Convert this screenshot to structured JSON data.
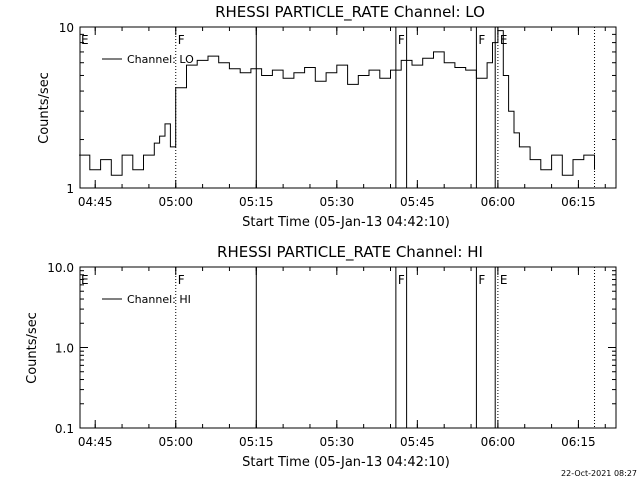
{
  "chart_data": [
    {
      "type": "line",
      "title": "RHESSI PARTICLE_RATE Channel: LO",
      "xlabel": "Start Time (05-Jan-13 04:42:10)",
      "ylabel": "Counts/sec",
      "yscale": "log",
      "ylim": [
        1,
        10
      ],
      "y_tick_labels": [
        "1",
        "10"
      ],
      "xlim": [
        "04:42:10",
        "06:22:00"
      ],
      "x_tick_labels": [
        "04:45",
        "05:00",
        "05:15",
        "05:30",
        "05:45",
        "06:00",
        "06:15"
      ],
      "series": [
        {
          "name": "Channel: LO",
          "x": [
            "04:42",
            "04:44",
            "04:46",
            "04:48",
            "04:50",
            "04:52",
            "04:54",
            "04:56",
            "04:57",
            "04:58",
            "04:59",
            "05:00",
            "05:02",
            "05:04",
            "05:06",
            "05:08",
            "05:10",
            "05:12",
            "05:14",
            "05:16",
            "05:18",
            "05:20",
            "05:22",
            "05:24",
            "05:26",
            "05:28",
            "05:30",
            "05:32",
            "05:34",
            "05:36",
            "05:38",
            "05:40",
            "05:42",
            "05:44",
            "05:46",
            "05:48",
            "05:50",
            "05:52",
            "05:54",
            "05:56",
            "05:58",
            "05:59",
            "06:00",
            "06:01",
            "06:02",
            "06:03",
            "06:04",
            "06:06",
            "06:08",
            "06:10",
            "06:12",
            "06:14",
            "06:16",
            "06:18"
          ],
          "values": [
            1.6,
            1.3,
            1.5,
            1.2,
            1.6,
            1.3,
            1.6,
            1.9,
            2.1,
            2.5,
            1.8,
            4.2,
            5.8,
            6.2,
            6.6,
            6.0,
            5.5,
            5.2,
            5.5,
            5.0,
            5.4,
            4.8,
            5.2,
            5.6,
            4.6,
            5.2,
            5.8,
            4.4,
            5.0,
            5.4,
            4.8,
            5.4,
            6.2,
            5.8,
            6.4,
            7.0,
            6.0,
            5.6,
            5.4,
            4.8,
            6.0,
            8.0,
            9.5,
            5.0,
            3.0,
            2.2,
            1.8,
            1.5,
            1.3,
            1.6,
            1.2,
            1.5,
            1.6,
            1.3
          ]
        }
      ],
      "flags": [
        {
          "label": "E",
          "time": "04:42:10"
        },
        {
          "label": "F",
          "time": "05:00"
        },
        {
          "label": "F",
          "time": "05:41"
        },
        {
          "label": "F",
          "time": "05:56"
        },
        {
          "label": "E",
          "time": "06:00"
        }
      ]
    },
    {
      "type": "line",
      "title": "RHESSI PARTICLE_RATE Channel: HI",
      "xlabel": "Start Time (05-Jan-13 04:42:10)",
      "ylabel": "Counts/sec",
      "yscale": "log",
      "ylim": [
        0.1,
        10
      ],
      "y_tick_labels": [
        "0.1",
        "1.0",
        "10.0"
      ],
      "xlim": [
        "04:42:10",
        "06:22:00"
      ],
      "x_tick_labels": [
        "04:45",
        "05:00",
        "05:15",
        "05:30",
        "05:45",
        "06:00",
        "06:15"
      ],
      "series": [
        {
          "name": "Channel: HI",
          "x": [],
          "values": []
        }
      ],
      "flags": [
        {
          "label": "E",
          "time": "04:42:10"
        },
        {
          "label": "F",
          "time": "05:00"
        },
        {
          "label": "F",
          "time": "05:41"
        },
        {
          "label": "F",
          "time": "05:56"
        },
        {
          "label": "E",
          "time": "06:00"
        }
      ]
    }
  ],
  "footer": {
    "timestamp": "22-Oct-2021 08:27"
  },
  "colors": {
    "line": "#000000",
    "background": "#ffffff"
  }
}
